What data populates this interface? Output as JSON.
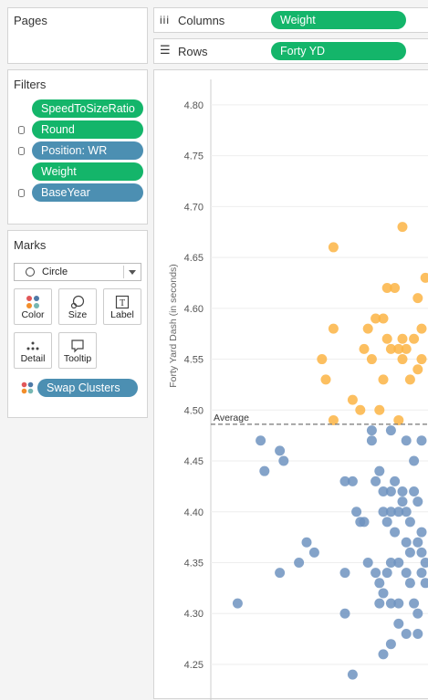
{
  "pages": {
    "title": "Pages"
  },
  "shelves": {
    "columns_label": "Columns",
    "columns_pill": "Weight",
    "rows_label": "Rows",
    "rows_pill": "Forty YD"
  },
  "filters": {
    "title": "Filters",
    "items": [
      {
        "label": "SpeedToSizeRatio",
        "color": "green",
        "db": false
      },
      {
        "label": "Round",
        "color": "green",
        "db": true
      },
      {
        "label": "Position: WR",
        "color": "blue",
        "db": true
      },
      {
        "label": "Weight",
        "color": "green",
        "db": false
      },
      {
        "label": "BaseYear",
        "color": "blue",
        "db": true
      }
    ]
  },
  "marks": {
    "title": "Marks",
    "mark_type": "Circle",
    "buttons": {
      "color": "Color",
      "size": "Size",
      "label": "Label",
      "detail": "Detail",
      "tooltip": "Tooltip"
    },
    "color_pill": "Swap Clusters"
  },
  "chart_data": {
    "type": "scatter",
    "ylabel": "Forty Yard Dash (in seconds)",
    "ylim": [
      4.215,
      4.825
    ],
    "yticks": [
      "4.80",
      "4.75",
      "4.70",
      "4.65",
      "4.60",
      "4.55",
      "4.50",
      "4.45",
      "4.40",
      "4.35",
      "4.30",
      "4.25"
    ],
    "xlim": [
      0,
      100
    ],
    "reference_line": {
      "label": "Average",
      "value": 4.486
    },
    "colors": {
      "orange": "#fbb444",
      "blue": "#6e93bf"
    },
    "series": [
      {
        "color": "orange",
        "points": [
          {
            "x": 50,
            "y": 4.68
          },
          {
            "x": 32,
            "y": 4.66
          },
          {
            "x": 56,
            "y": 4.63
          },
          {
            "x": 46,
            "y": 4.62
          },
          {
            "x": 48,
            "y": 4.62
          },
          {
            "x": 54,
            "y": 4.61
          },
          {
            "x": 32,
            "y": 4.58
          },
          {
            "x": 43,
            "y": 4.59
          },
          {
            "x": 45,
            "y": 4.59
          },
          {
            "x": 41,
            "y": 4.58
          },
          {
            "x": 46,
            "y": 4.57
          },
          {
            "x": 50,
            "y": 4.57
          },
          {
            "x": 53,
            "y": 4.57
          },
          {
            "x": 55,
            "y": 4.58
          },
          {
            "x": 40,
            "y": 4.56
          },
          {
            "x": 47,
            "y": 4.56
          },
          {
            "x": 49,
            "y": 4.56
          },
          {
            "x": 51,
            "y": 4.56
          },
          {
            "x": 29,
            "y": 4.55
          },
          {
            "x": 42,
            "y": 4.55
          },
          {
            "x": 50,
            "y": 4.55
          },
          {
            "x": 55,
            "y": 4.55
          },
          {
            "x": 54,
            "y": 4.54
          },
          {
            "x": 30,
            "y": 4.53
          },
          {
            "x": 45,
            "y": 4.53
          },
          {
            "x": 52,
            "y": 4.53
          },
          {
            "x": 37,
            "y": 4.51
          },
          {
            "x": 39,
            "y": 4.5
          },
          {
            "x": 44,
            "y": 4.5
          },
          {
            "x": 32,
            "y": 4.49
          },
          {
            "x": 49,
            "y": 4.49
          }
        ]
      },
      {
        "color": "blue",
        "points": [
          {
            "x": 13,
            "y": 4.47
          },
          {
            "x": 18,
            "y": 4.46
          },
          {
            "x": 19,
            "y": 4.45
          },
          {
            "x": 14,
            "y": 4.44
          },
          {
            "x": 42,
            "y": 4.48
          },
          {
            "x": 42,
            "y": 4.47
          },
          {
            "x": 47,
            "y": 4.48
          },
          {
            "x": 51,
            "y": 4.47
          },
          {
            "x": 55,
            "y": 4.47
          },
          {
            "x": 53,
            "y": 4.45
          },
          {
            "x": 44,
            "y": 4.44
          },
          {
            "x": 35,
            "y": 4.43
          },
          {
            "x": 37,
            "y": 4.43
          },
          {
            "x": 43,
            "y": 4.43
          },
          {
            "x": 48,
            "y": 4.43
          },
          {
            "x": 45,
            "y": 4.42
          },
          {
            "x": 47,
            "y": 4.42
          },
          {
            "x": 50,
            "y": 4.42
          },
          {
            "x": 53,
            "y": 4.42
          },
          {
            "x": 54,
            "y": 4.41
          },
          {
            "x": 50,
            "y": 4.41
          },
          {
            "x": 38,
            "y": 4.4
          },
          {
            "x": 45,
            "y": 4.4
          },
          {
            "x": 47,
            "y": 4.4
          },
          {
            "x": 49,
            "y": 4.4
          },
          {
            "x": 51,
            "y": 4.4
          },
          {
            "x": 39,
            "y": 4.39
          },
          {
            "x": 40,
            "y": 4.39
          },
          {
            "x": 46,
            "y": 4.39
          },
          {
            "x": 52,
            "y": 4.39
          },
          {
            "x": 48,
            "y": 4.38
          },
          {
            "x": 55,
            "y": 4.38
          },
          {
            "x": 51,
            "y": 4.37
          },
          {
            "x": 54,
            "y": 4.37
          },
          {
            "x": 25,
            "y": 4.37
          },
          {
            "x": 27,
            "y": 4.36
          },
          {
            "x": 52,
            "y": 4.36
          },
          {
            "x": 55,
            "y": 4.36
          },
          {
            "x": 23,
            "y": 4.35
          },
          {
            "x": 41,
            "y": 4.35
          },
          {
            "x": 47,
            "y": 4.35
          },
          {
            "x": 49,
            "y": 4.35
          },
          {
            "x": 56,
            "y": 4.35
          },
          {
            "x": 18,
            "y": 4.34
          },
          {
            "x": 35,
            "y": 4.34
          },
          {
            "x": 43,
            "y": 4.34
          },
          {
            "x": 46,
            "y": 4.34
          },
          {
            "x": 51,
            "y": 4.34
          },
          {
            "x": 55,
            "y": 4.34
          },
          {
            "x": 44,
            "y": 4.33
          },
          {
            "x": 45,
            "y": 4.32
          },
          {
            "x": 52,
            "y": 4.33
          },
          {
            "x": 56,
            "y": 4.33
          },
          {
            "x": 7,
            "y": 4.31
          },
          {
            "x": 44,
            "y": 4.31
          },
          {
            "x": 47,
            "y": 4.31
          },
          {
            "x": 49,
            "y": 4.31
          },
          {
            "x": 53,
            "y": 4.31
          },
          {
            "x": 35,
            "y": 4.3
          },
          {
            "x": 54,
            "y": 4.3
          },
          {
            "x": 49,
            "y": 4.29
          },
          {
            "x": 51,
            "y": 4.28
          },
          {
            "x": 54,
            "y": 4.28
          },
          {
            "x": 47,
            "y": 4.27
          },
          {
            "x": 45,
            "y": 4.26
          },
          {
            "x": 37,
            "y": 4.24
          }
        ]
      }
    ]
  }
}
